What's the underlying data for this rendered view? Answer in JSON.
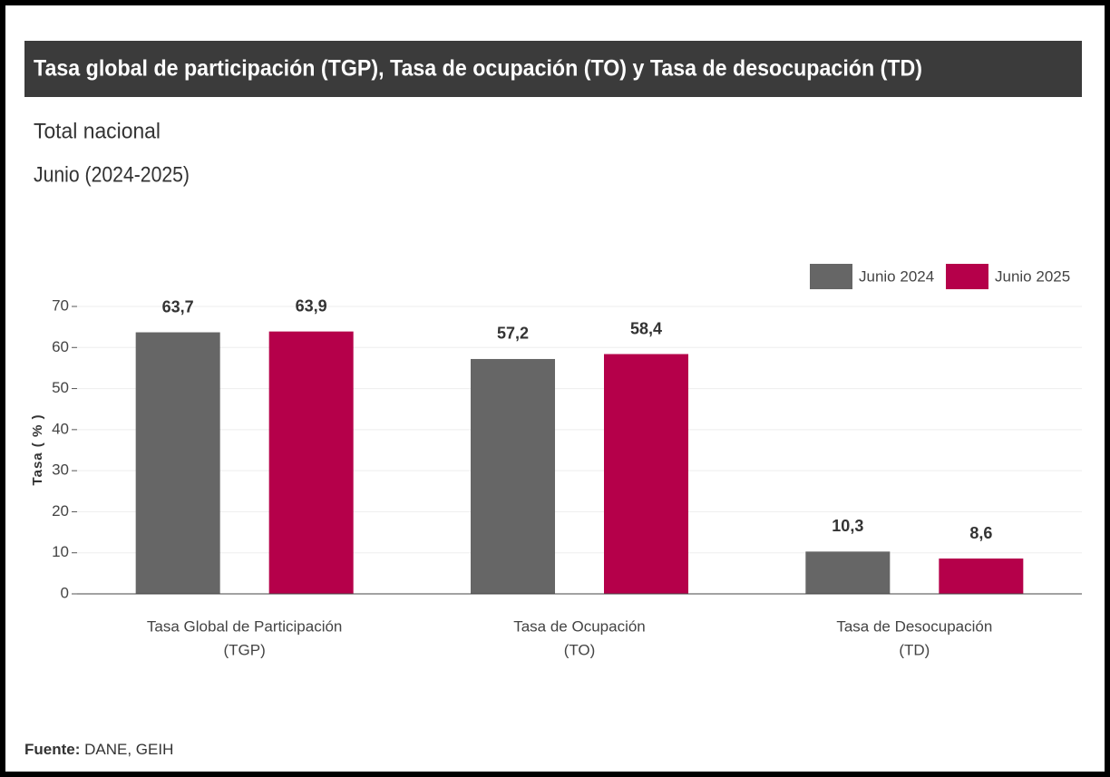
{
  "chart_data": {
    "type": "bar",
    "title": "Tasa global de participación (TGP), Tasa de ocupación (TO) y Tasa de desocupación (TD)",
    "subtitle": [
      "Total nacional",
      "Junio (2024-2025)"
    ],
    "y_label": "Tasa ( % )",
    "categories": [
      [
        "Tasa Global de Participación",
        "(TGP)"
      ],
      [
        "Tasa de Ocupación",
        "(TO)"
      ],
      [
        "Tasa de Desocupación",
        "(TD)"
      ]
    ],
    "series": [
      {
        "name": "Junio 2024",
        "color": "#666666",
        "values": [
          63.7,
          57.2,
          10.3
        ],
        "value_labels": [
          "63,7",
          "57,2",
          "10,3"
        ]
      },
      {
        "name": "Junio 2025",
        "color": "#b5004a",
        "values": [
          63.9,
          58.4,
          8.6
        ],
        "value_labels": [
          "63,9",
          "58,4",
          "8,6"
        ]
      }
    ],
    "ylim": [
      0,
      70
    ],
    "yticks": [
      0,
      10,
      20,
      30,
      40,
      50,
      60,
      70
    ],
    "grid": true,
    "legend": "top-right",
    "source_label": "Fuente:",
    "source": "DANE, GEIH"
  }
}
